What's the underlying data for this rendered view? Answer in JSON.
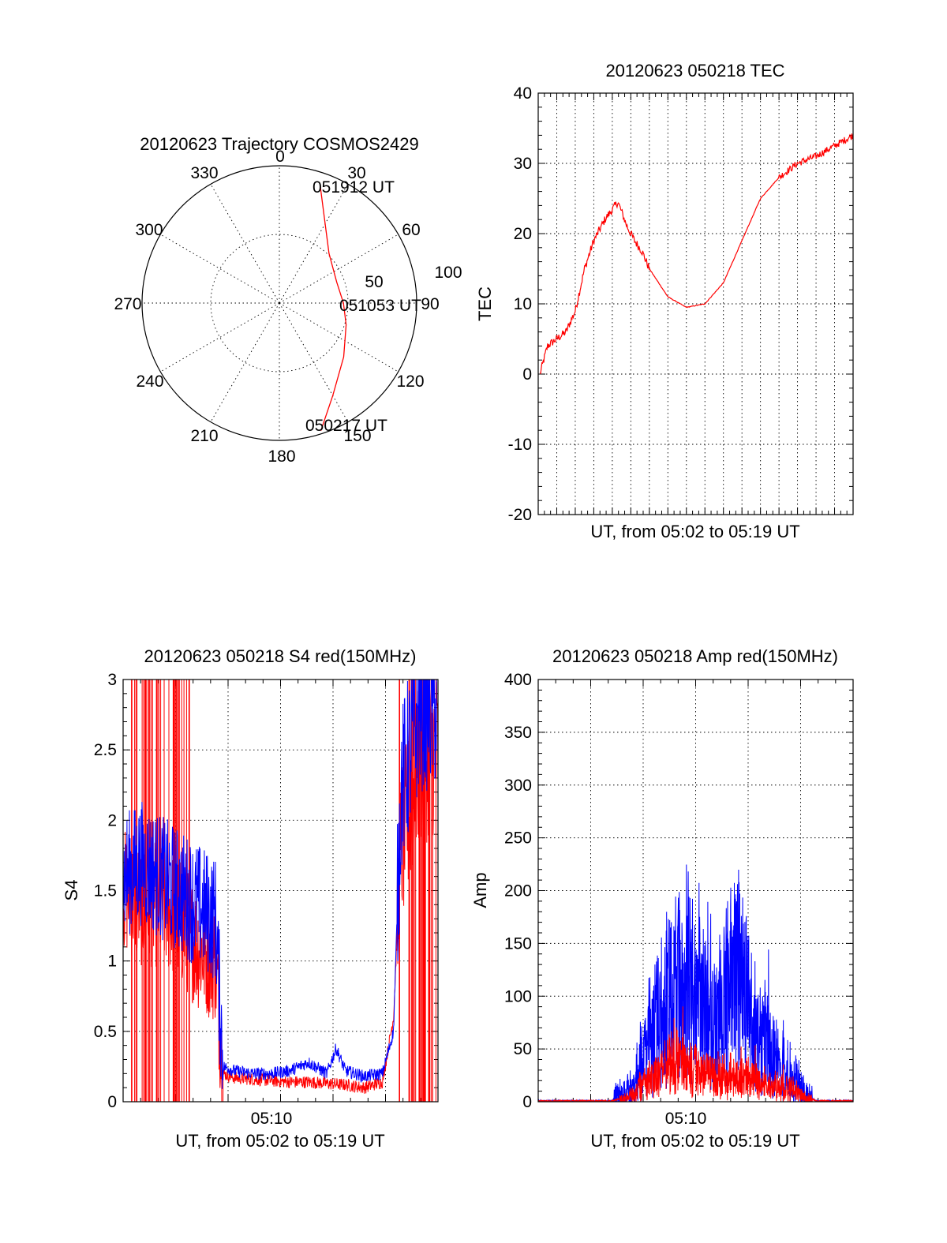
{
  "chart_data": [
    {
      "id": "polar",
      "type": "scatter",
      "subtype": "polar-skyplot",
      "title": "20120623 Trajectory COSMOS2429",
      "azimuth_ticks": [
        "0",
        "30",
        "60",
        "90",
        "120",
        "150",
        "180",
        "210",
        "240",
        "270",
        "300",
        "330"
      ],
      "radial_ticks": [
        "50",
        "100"
      ],
      "annotations": [
        "051912 UT",
        "051053 UT",
        "050217 UT"
      ],
      "trajectory": {
        "color": "#ff0000",
        "points": [
          {
            "az": 19,
            "zen": 82
          },
          {
            "az": 30,
            "zen": 60
          },
          {
            "az": 45,
            "zen": 46
          },
          {
            "az": 70,
            "zen": 40
          },
          {
            "az": 90,
            "zen": 42
          },
          {
            "az": 108,
            "zen": 46
          },
          {
            "az": 130,
            "zen": 55
          },
          {
            "az": 150,
            "zen": 70
          },
          {
            "az": 162,
            "zen": 88
          }
        ]
      },
      "grid": true
    },
    {
      "id": "tec",
      "type": "line",
      "title": "20120623 050218 TEC",
      "xlabel": "UT, from 05:02 to 05:19 UT",
      "ylabel": "TEC",
      "xlim": [
        0,
        17
      ],
      "ylim": [
        -20,
        40
      ],
      "yticks": [
        "-20",
        "-10",
        "0",
        "10",
        "20",
        "30",
        "40"
      ],
      "grid": true,
      "series": [
        {
          "color": "#ff0000",
          "x": [
            0.1,
            0.5,
            1.0,
            1.5,
            2.0,
            2.5,
            3.0,
            3.6,
            4.3,
            4.8,
            5.2,
            5.6,
            6.0,
            7.0,
            8.0,
            9.0,
            10.0,
            11.0,
            12.0,
            13.0,
            14.0,
            15.0,
            16.0,
            17.0
          ],
          "y": [
            0,
            4,
            5,
            6,
            9,
            15,
            19,
            22,
            24.5,
            21,
            19,
            17.5,
            15,
            11,
            9.5,
            10,
            13,
            19,
            25,
            28,
            30,
            31,
            32.5,
            34
          ]
        }
      ]
    },
    {
      "id": "s4",
      "type": "line",
      "title": "20120623 050218 S4 red(150MHz)",
      "xlabel": "UT, from 05:02 to 05:19 UT",
      "ylabel": "S4",
      "xlim": [
        0,
        17
      ],
      "ylim": [
        0,
        3
      ],
      "xticks": [
        "05:10"
      ],
      "yticks": [
        "0",
        "0.5",
        "1",
        "1.5",
        "2",
        "2.5",
        "3"
      ],
      "grid": true,
      "series": [
        {
          "color": "#ff0000",
          "x": [
            0,
            1,
            2,
            3,
            4,
            5,
            5.4,
            6,
            7,
            8,
            9,
            10,
            11,
            12,
            13,
            14,
            14.6,
            15,
            16,
            17
          ],
          "y": [
            1.5,
            1.4,
            1.4,
            1.3,
            1.1,
            1.0,
            0.2,
            0.17,
            0.16,
            0.15,
            0.14,
            0.14,
            0.13,
            0.12,
            0.1,
            0.14,
            0.6,
            1.8,
            2.4,
            2.5
          ]
        },
        {
          "color": "#0000ff",
          "x": [
            0,
            1,
            2,
            3,
            4,
            5,
            5.4,
            6,
            7,
            8,
            9,
            10,
            11,
            11.5,
            12,
            13,
            14,
            14.6,
            15,
            16,
            17
          ],
          "y": [
            1.6,
            1.7,
            1.6,
            1.5,
            1.4,
            1.3,
            0.25,
            0.22,
            0.2,
            0.2,
            0.22,
            0.28,
            0.2,
            0.38,
            0.22,
            0.18,
            0.2,
            0.5,
            2.2,
            2.8,
            2.8
          ]
        }
      ]
    },
    {
      "id": "amp",
      "type": "line",
      "title": "20120623 050218 Amp red(150MHz)",
      "xlabel": "UT, from 05:02 to 05:19 UT",
      "ylabel": "Amp",
      "xlim": [
        0,
        17
      ],
      "ylim": [
        0,
        400
      ],
      "xticks": [
        "05:10"
      ],
      "yticks": [
        "0",
        "50",
        "100",
        "150",
        "200",
        "250",
        "300",
        "350",
        "400"
      ],
      "grid": true,
      "series": [
        {
          "color": "#ff0000",
          "x": [
            0,
            4,
            4.6,
            5.2,
            5.8,
            6.5,
            7.0,
            7.5,
            8.0,
            9.0,
            10.0,
            11.0,
            12.0,
            13.0,
            14.0,
            14.5,
            15,
            17
          ],
          "y": [
            0,
            0,
            3,
            15,
            35,
            45,
            60,
            70,
            55,
            50,
            45,
            40,
            30,
            25,
            15,
            5,
            0,
            0
          ]
        },
        {
          "color": "#0000ff",
          "x": [
            0,
            4,
            5,
            5.5,
            6.2,
            6.8,
            7.5,
            8.0,
            8.5,
            9.0,
            9.5,
            10.2,
            10.8,
            11.3,
            11.8,
            12.3,
            13.0,
            13.5,
            14.0,
            14.2,
            14.5,
            15,
            17
          ],
          "y": [
            0,
            0,
            20,
            60,
            110,
            170,
            200,
            240,
            170,
            150,
            140,
            180,
            220,
            170,
            90,
            110,
            60,
            40,
            35,
            20,
            5,
            0,
            0
          ]
        }
      ]
    }
  ]
}
